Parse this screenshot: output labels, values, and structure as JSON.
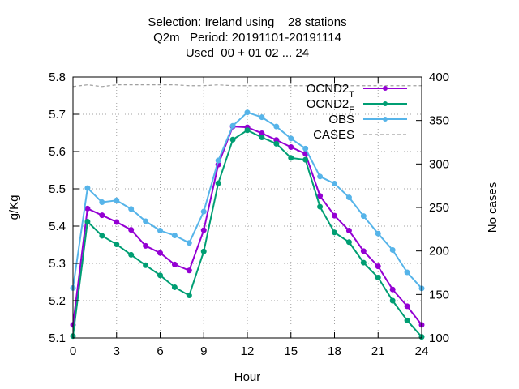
{
  "chart_data": {
    "type": "line",
    "title_lines": [
      "Selection: Ireland using    28 stations",
      "Q2m   Period: 20191101-20191114",
      "Used  00 + 01 02 ... 24"
    ],
    "xlabel": "Hour",
    "ylabel": "g/Kg",
    "y2label": "No cases",
    "xlim": [
      0,
      24
    ],
    "ylim": [
      5.1,
      5.8
    ],
    "y2lim": [
      100,
      400
    ],
    "xticks": [
      0,
      3,
      6,
      9,
      12,
      15,
      18,
      21,
      24
    ],
    "yticks": [
      5.1,
      5.2,
      5.3,
      5.4,
      5.5,
      5.6,
      5.7,
      5.8
    ],
    "y2ticks": [
      100,
      150,
      200,
      250,
      300,
      350,
      400
    ],
    "grid": true,
    "legend_position": "top-right",
    "x": [
      0,
      1,
      2,
      3,
      4,
      5,
      6,
      7,
      8,
      9,
      10,
      11,
      12,
      13,
      14,
      15,
      16,
      17,
      18,
      19,
      20,
      21,
      22,
      23,
      24
    ],
    "series": [
      {
        "name": "OCND2",
        "subscript": "T",
        "color": "#9400d3",
        "axis": "y",
        "marker": true,
        "values": [
          5.135,
          5.447,
          5.429,
          5.411,
          5.39,
          5.347,
          5.328,
          5.297,
          5.281,
          5.389,
          5.565,
          5.667,
          5.665,
          5.649,
          5.631,
          5.612,
          5.594,
          5.481,
          5.428,
          5.388,
          5.333,
          5.292,
          5.23,
          5.185,
          5.135
        ]
      },
      {
        "name": "OCND2",
        "subscript": "F",
        "color": "#009e73",
        "axis": "y",
        "marker": true,
        "values": [
          5.105,
          5.412,
          5.374,
          5.351,
          5.323,
          5.295,
          5.268,
          5.236,
          5.214,
          5.332,
          5.515,
          5.632,
          5.657,
          5.638,
          5.621,
          5.583,
          5.578,
          5.452,
          5.383,
          5.357,
          5.302,
          5.262,
          5.2,
          5.147,
          5.103
        ]
      },
      {
        "name": "OBS",
        "color": "#56b4e9",
        "axis": "y",
        "marker": true,
        "values": [
          5.234,
          5.502,
          5.464,
          5.469,
          5.446,
          5.413,
          5.388,
          5.375,
          5.355,
          5.439,
          5.576,
          5.669,
          5.705,
          5.692,
          5.667,
          5.635,
          5.608,
          5.533,
          5.514,
          5.477,
          5.427,
          5.38,
          5.336,
          5.276,
          5.233
        ]
      },
      {
        "name": "CASES",
        "color": "#a0a0a0",
        "axis": "y2",
        "marker": false,
        "dashed": true,
        "values": [
          389,
          391,
          389,
          391,
          391,
          391,
          391,
          391,
          390,
          390,
          391,
          390,
          390,
          390,
          390,
          390,
          390,
          390,
          390,
          390,
          390,
          390,
          390,
          390,
          390
        ]
      }
    ]
  }
}
